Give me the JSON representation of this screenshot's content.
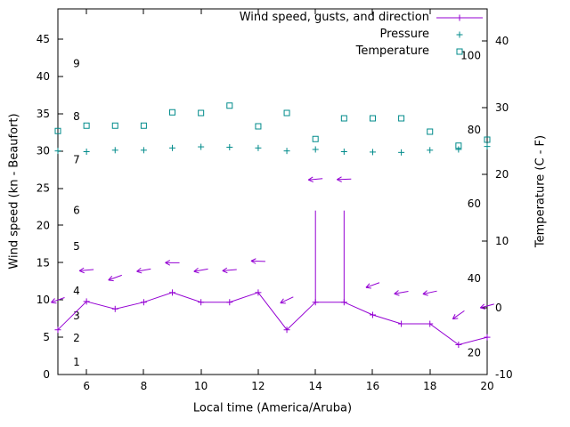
{
  "window": {
    "background": "#ffffff"
  },
  "chart_data": {
    "type": "line",
    "title": "",
    "xlabel": "Local time (America/Aruba)",
    "ylabel": "Wind speed (kn - Beaufort)",
    "y2label": "Temperature (C - F)",
    "x_range": [
      5,
      20
    ],
    "y_range": [
      0,
      45
    ],
    "y2_range": [
      -10,
      40
    ],
    "x_ticks": [
      6,
      8,
      10,
      12,
      14,
      16,
      18,
      20
    ],
    "y_ticks": [
      0,
      5,
      10,
      15,
      20,
      25,
      30,
      35,
      40,
      45
    ],
    "y2_ticks": [
      -10,
      0,
      10,
      20,
      30,
      40
    ],
    "grid": false,
    "legend_position": "top-right-inside",
    "beaufort_labels": [
      {
        "label": "1",
        "kn": 1.7
      },
      {
        "label": "2",
        "kn": 4.9
      },
      {
        "label": "3",
        "kn": 7.9
      },
      {
        "label": "4",
        "kn": 11.2
      },
      {
        "label": "5",
        "kn": 17.2
      },
      {
        "label": "6",
        "kn": 22.0
      },
      {
        "label": "7",
        "kn": 28.8
      },
      {
        "label": "8",
        "kn": 34.6
      },
      {
        "label": "9",
        "kn": 41.7
      }
    ],
    "fahrenheit_labels": [
      {
        "label": "20",
        "c": -6.7
      },
      {
        "label": "40",
        "c": 4.4
      },
      {
        "label": "60",
        "c": 15.6
      },
      {
        "label": "80",
        "c": 26.7
      },
      {
        "label": "100",
        "c": 37.8
      }
    ],
    "legend": [
      {
        "label": "Wind speed, gusts, and direction",
        "marker": "line-plus",
        "color": "#9400d3"
      },
      {
        "label": "Pressure",
        "marker": "plus",
        "color": "#008b8b"
      },
      {
        "label": "Temperature",
        "marker": "square",
        "color": "#008b8b"
      }
    ],
    "colors": {
      "wind": "#9400d3",
      "met": "#008b8b",
      "axis": "#000000"
    },
    "hours": [
      5,
      6,
      7,
      8,
      9,
      10,
      11,
      12,
      13,
      14,
      15,
      16,
      17,
      18,
      19,
      20
    ],
    "wind_speed": [
      6.0,
      9.8,
      8.8,
      9.7,
      11.0,
      9.7,
      9.7,
      11.0,
      6.0,
      9.7,
      9.7,
      8.0,
      6.8,
      6.8,
      4.0,
      5.0
    ],
    "wind_gust": [
      null,
      null,
      null,
      null,
      null,
      null,
      null,
      null,
      null,
      22,
      22,
      null,
      null,
      null,
      null,
      null
    ],
    "wind_arrow_kn": [
      10,
      14,
      13,
      14,
      15,
      14,
      14,
      15.2,
      10,
      26.2,
      26.2,
      12,
      11,
      11,
      8,
      9.2
    ],
    "wind_arrow_deg": [
      200,
      185,
      200,
      190,
      180,
      190,
      185,
      178,
      205,
      185,
      182,
      200,
      190,
      192,
      215,
      195
    ],
    "pressure_inhg": [
      30.0,
      29.9,
      30.1,
      30.1,
      30.4,
      30.55,
      30.5,
      30.4,
      30.0,
      30.2,
      29.9,
      29.85,
      29.8,
      30.1,
      30.2,
      30.6
    ],
    "temperature_c": [
      26.5,
      27.3,
      27.3,
      27.3,
      29.3,
      29.2,
      30.3,
      27.2,
      29.2,
      25.3,
      28.4,
      28.4,
      28.4,
      26.4,
      24.3,
      25.2
    ]
  }
}
